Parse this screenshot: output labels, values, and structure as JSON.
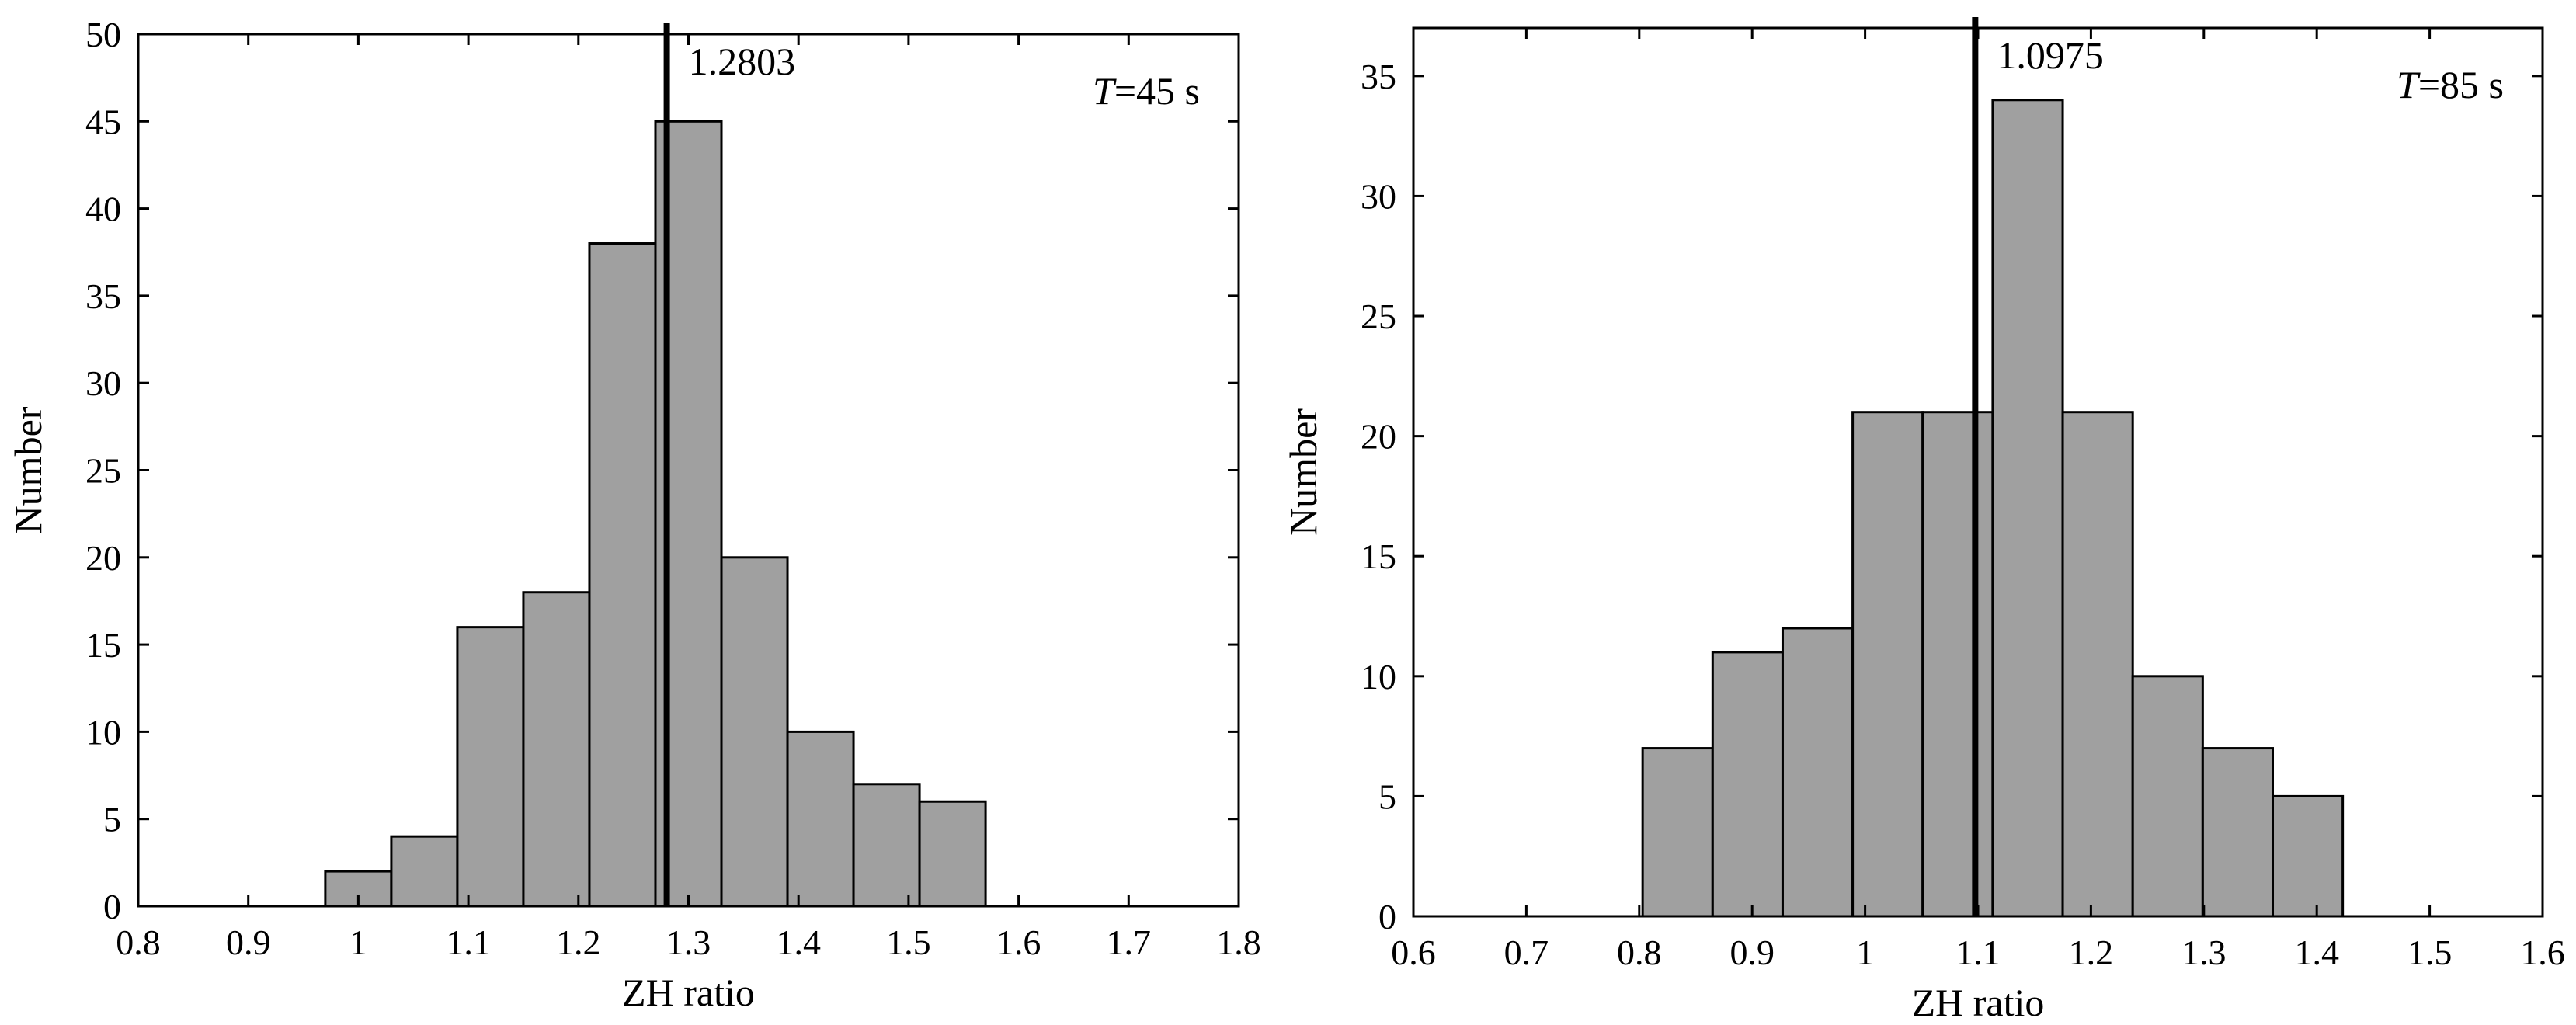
{
  "chart_data": [
    {
      "type": "bar",
      "subtype": "histogram",
      "xlabel": "ZH ratio",
      "ylabel": "Number",
      "xlim": [
        0.8,
        1.8
      ],
      "ylim": [
        0,
        50
      ],
      "xticks": [
        "0.8",
        "0.9",
        "1",
        "1.1",
        "1.2",
        "1.3",
        "1.4",
        "1.5",
        "1.6",
        "1.7",
        "1.8"
      ],
      "yticks": [
        "0",
        "5",
        "10",
        "15",
        "20",
        "25",
        "30",
        "35",
        "40",
        "45",
        "50"
      ],
      "bin_edges": [
        0.97,
        1.03,
        1.09,
        1.15,
        1.21,
        1.27,
        1.33,
        1.39,
        1.45,
        1.51,
        1.57
      ],
      "values": [
        2,
        4,
        16,
        18,
        38,
        45,
        20,
        10,
        7,
        6
      ],
      "vline": {
        "x": 1.2803,
        "label": "1.2803"
      },
      "annotation": {
        "italic": "T",
        "text": "=45 s"
      },
      "grid": false,
      "bar_color": "#a0a0a0"
    },
    {
      "type": "bar",
      "subtype": "histogram",
      "xlabel": "ZH ratio",
      "ylabel": "Number",
      "xlim": [
        0.6,
        1.6
      ],
      "ylim": [
        0,
        37
      ],
      "xticks": [
        "0.6",
        "0.7",
        "0.8",
        "0.9",
        "1",
        "1.1",
        "1.2",
        "1.3",
        "1.4",
        "1.5",
        "1.6"
      ],
      "yticks": [
        "0",
        "5",
        "10",
        "15",
        "20",
        "25",
        "30",
        "35"
      ],
      "bin_edges": [
        0.803,
        0.865,
        0.927,
        0.989,
        1.051,
        1.113,
        1.175,
        1.237,
        1.299,
        1.361,
        1.423
      ],
      "values": [
        7,
        11,
        12,
        21,
        21,
        34,
        21,
        10,
        7,
        5
      ],
      "vline": {
        "x": 1.0975,
        "label": "1.0975"
      },
      "annotation": {
        "italic": "T",
        "text": "=85 s"
      },
      "grid": false,
      "bar_color": "#a0a0a0"
    }
  ]
}
